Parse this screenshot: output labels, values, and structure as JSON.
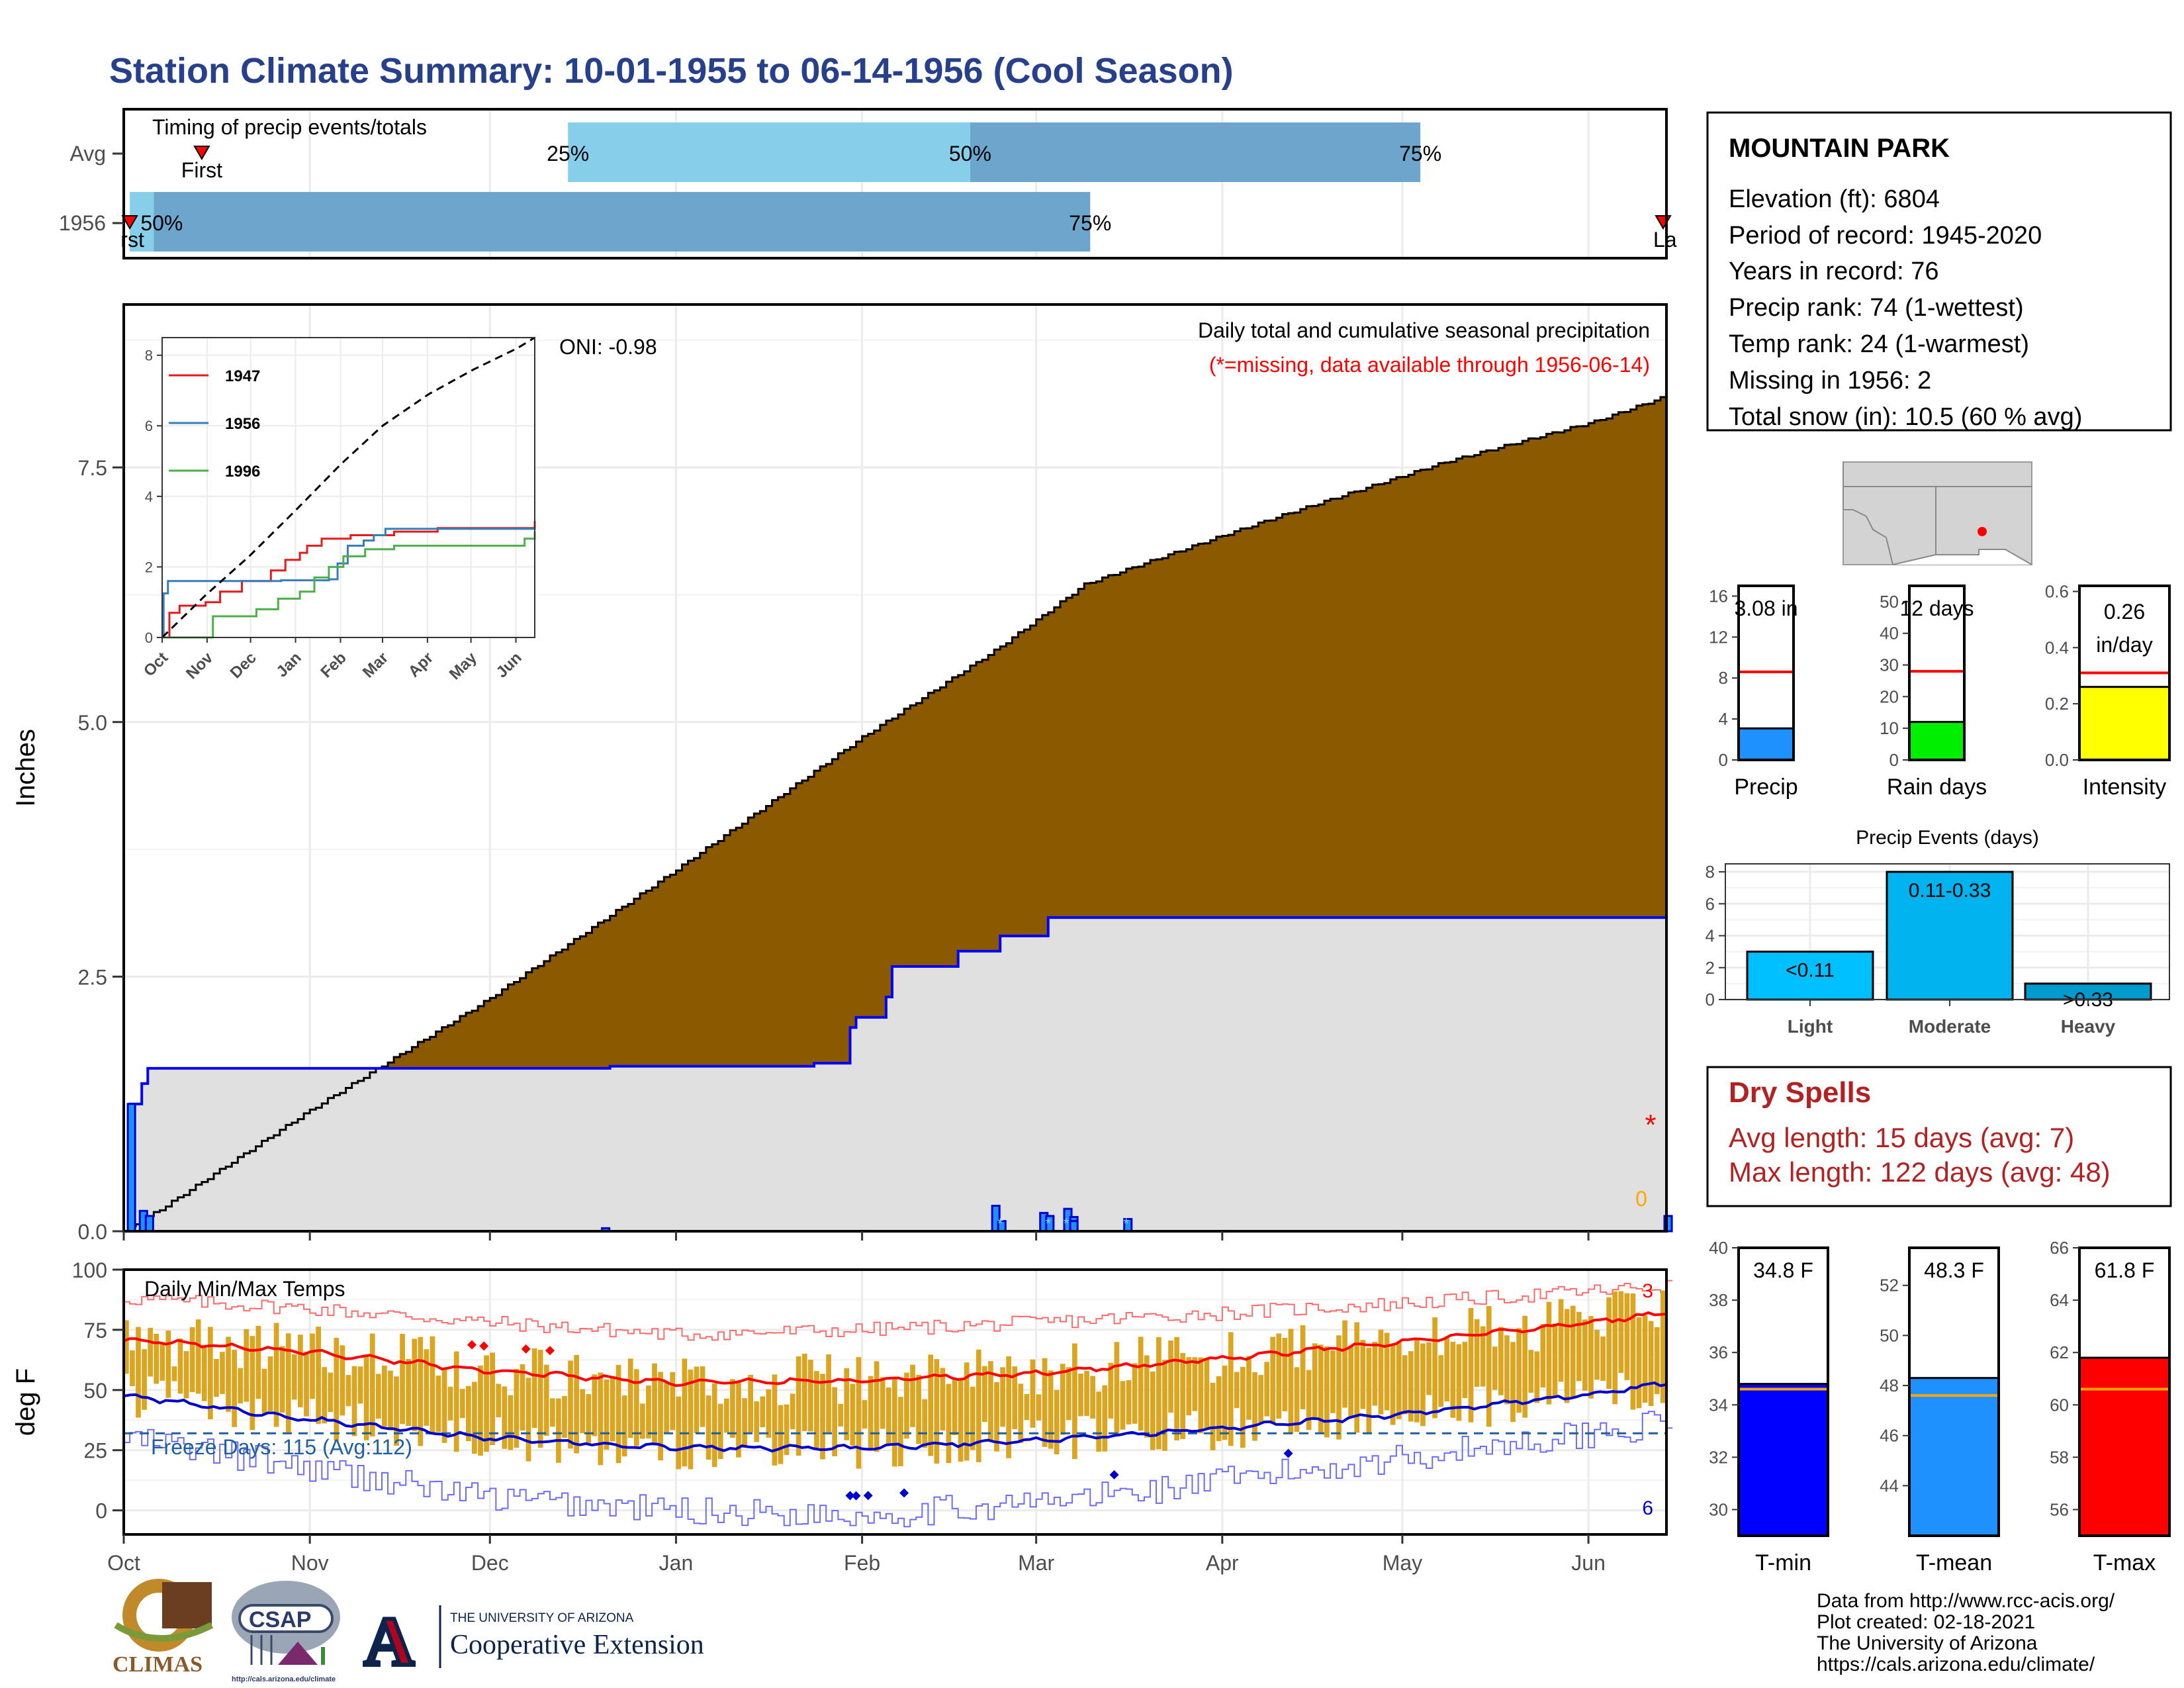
{
  "title": "Station Climate Summary: 10-01-1955 to 06-14-1956 (Cool Season)",
  "months": [
    "Oct",
    "Nov",
    "Dec",
    "Jan",
    "Feb",
    "Mar",
    "Apr",
    "May",
    "Jun"
  ],
  "timing": {
    "label": "Timing of precip events/totals",
    "rows": [
      "Avg",
      "1956"
    ],
    "avg": {
      "first_day": 13,
      "p25": 74,
      "p50": 141,
      "p75": 216,
      "last_day": 318
    },
    "y1956": {
      "first_day": 1,
      "p50_day": 5,
      "p75_day": 161,
      "last_day": 334
    },
    "labels": {
      "p25": "25%",
      "p50": "50%",
      "p75": "75%",
      "p50_short": "50%",
      "first": "First",
      "last": "Last",
      "first_clip": "rst",
      "last_clip": "La"
    },
    "colors": {
      "light": "#87CEEB",
      "dark": "#6CA6CD"
    }
  },
  "station": {
    "name": "MOUNTAIN PARK",
    "lines": [
      "Elevation (ft): 6804",
      "Period of record: 1945-2020",
      "Years in record: 76",
      "Precip rank: 74 (1-wettest)",
      "Temp rank: 24 (1-warmest)",
      "Missing in 1956: 2",
      "Total snow (in): 10.5 (60 % avg)"
    ]
  },
  "chart_data": [
    {
      "type": "area",
      "title": "Daily total and cumulative seasonal precipitation",
      "subtitle": "(*=missing, data available through 1956-06-14)",
      "ylabel": "Inches",
      "ylim": [
        0,
        9.1
      ],
      "yticks": [
        0,
        2.5,
        5,
        7.5
      ],
      "ytick_labels": [
        "0.0",
        "2.5",
        "5.0",
        "7.5"
      ],
      "x_days": 257,
      "oni_label": "ONI: -0.98",
      "annotation_zero": "0",
      "avg_cumulative": {
        "day": [
          0,
          7,
          30,
          60,
          92,
          123,
          145,
          152,
          160,
          184,
          194,
          220,
          245,
          257
        ],
        "value": [
          0,
          0.25,
          1.15,
          2.25,
          3.55,
          4.85,
          5.7,
          6.0,
          6.35,
          6.85,
          7.05,
          7.55,
          7.95,
          8.2
        ]
      },
      "y1956_cumulative": {
        "step_day": [
          0,
          1,
          3,
          4,
          80,
          81,
          82,
          114,
          115,
          120,
          121,
          122,
          127,
          128,
          138,
          139,
          145,
          146,
          153,
          154,
          257
        ],
        "value": [
          0,
          1.25,
          1.45,
          1.6,
          1.6,
          1.62,
          1.62,
          1.62,
          1.65,
          1.65,
          2.0,
          2.1,
          2.3,
          2.6,
          2.6,
          2.75,
          2.75,
          2.9,
          2.9,
          3.08,
          3.08
        ]
      },
      "daily_bars": {
        "day": [
          1,
          3,
          4,
          80,
          145,
          146,
          153,
          154,
          157,
          158,
          158,
          167,
          257
        ],
        "value": [
          1.25,
          0.2,
          0.15,
          0.03,
          0.25,
          0.1,
          0.18,
          0.15,
          0.22,
          0.14,
          0.1,
          0.12,
          0.15
        ]
      },
      "missing_marks_day": [
        146,
        154,
        157,
        167
      ],
      "colors": {
        "above_avg": "#008B00",
        "below_avg": "#8B5A00",
        "fill_1956": "#E0E0E0",
        "line_1956": "#0000FF",
        "missing": "#FF0000"
      }
    },
    {
      "type": "line",
      "title": "",
      "x_ticks": [
        "Oct",
        "Nov",
        "Dec",
        "Jan",
        "Feb",
        "Mar",
        "Apr",
        "May",
        "Jun"
      ],
      "ylim": [
        0,
        8.5
      ],
      "yticks": [
        0,
        2,
        4,
        6,
        8
      ],
      "series": [
        {
          "name": "1947",
          "color": "#E41A1C",
          "x": [
            0,
            5,
            12,
            30,
            40,
            55,
            75,
            85,
            95,
            100,
            110,
            130,
            160,
            190,
            220,
            257
          ],
          "y": [
            0,
            0.7,
            0.9,
            1.0,
            1.3,
            1.6,
            1.9,
            2.2,
            2.4,
            2.6,
            2.8,
            2.9,
            3.0,
            3.1,
            3.1,
            3.3
          ]
        },
        {
          "name": "1956",
          "color": "#377EB8",
          "x": [
            0,
            1,
            4,
            80,
            82,
            115,
            121,
            128,
            139,
            146,
            154,
            257
          ],
          "y": [
            0,
            1.25,
            1.6,
            1.6,
            1.62,
            1.65,
            2.1,
            2.6,
            2.75,
            2.9,
            3.08,
            3.08
          ]
        },
        {
          "name": "1996",
          "color": "#4DAF4A",
          "x": [
            0,
            30,
            35,
            60,
            65,
            80,
            95,
            105,
            115,
            125,
            140,
            160,
            190,
            220,
            250,
            257
          ],
          "y": [
            0,
            0,
            0.6,
            0.6,
            0.8,
            1.1,
            1.3,
            1.7,
            2.0,
            2.3,
            2.5,
            2.6,
            2.6,
            2.6,
            2.8,
            3.0
          ]
        }
      ],
      "avg": {
        "name": "avg",
        "x": [
          0,
          30,
          60,
          92,
          123,
          152,
          184,
          215,
          245,
          257
        ],
        "y": [
          0,
          1.2,
          2.3,
          3.6,
          4.9,
          6.0,
          6.9,
          7.6,
          8.2,
          8.5
        ]
      }
    },
    {
      "type": "line",
      "title": "Daily Min/Max Temps",
      "ylabel": "deg F",
      "ylim": [
        -10,
        100
      ],
      "yticks": [
        0,
        25,
        50,
        75,
        100
      ],
      "freeze_line": 32,
      "freeze_label": "Freeze Days: 115 (Avg:112)",
      "count_high_label": "3",
      "count_low_label": "6",
      "avg_max_line": {
        "x": [
          0,
          30,
          61,
          92,
          123,
          152,
          183,
          213,
          244,
          257
        ],
        "y": [
          71,
          66,
          58,
          53,
          54,
          57,
          63,
          70,
          78,
          82
        ]
      },
      "avg_min_line": {
        "x": [
          0,
          30,
          61,
          92,
          123,
          152,
          183,
          213,
          244,
          257
        ],
        "y": [
          48,
          38,
          30,
          26,
          26,
          29,
          34,
          40,
          48,
          53
        ]
      },
      "record_high": {
        "x": [
          0,
          30,
          61,
          92,
          123,
          152,
          183,
          213,
          244,
          257
        ],
        "y": [
          88,
          84,
          78,
          73,
          75,
          78,
          82,
          86,
          91,
          93
        ]
      },
      "record_low": {
        "x": [
          0,
          30,
          61,
          92,
          123,
          152,
          183,
          213,
          244,
          257
        ],
        "y": [
          30,
          18,
          5,
          0,
          -2,
          3,
          12,
          22,
          32,
          36
        ]
      },
      "record_high_days": [
        58,
        60,
        67,
        71
      ],
      "record_low_days": [
        121,
        122,
        124,
        130,
        165,
        194
      ],
      "colors": {
        "bars": "#DAA520",
        "avg_max": "#FF0000",
        "avg_min": "#0000CD",
        "rec_high": "#FF6A6A",
        "rec_low": "#6A6AFF",
        "freeze": "#1F5F9F"
      }
    },
    {
      "type": "bar",
      "categories": [
        "Precip"
      ],
      "values": [
        3.08
      ],
      "average": 8.6,
      "label": "3.08 in",
      "ylim": [
        0,
        17
      ],
      "yticks": [
        0,
        4,
        8,
        12,
        16
      ],
      "color": "#1E90FF"
    },
    {
      "type": "bar",
      "categories": [
        "Rain days"
      ],
      "values": [
        12
      ],
      "average": 28,
      "label": "12 days",
      "ylim": [
        0,
        55
      ],
      "yticks": [
        0,
        10,
        20,
        30,
        40,
        50
      ],
      "color": "#00EE00"
    },
    {
      "type": "bar",
      "categories": [
        "Intensity"
      ],
      "values": [
        0.26
      ],
      "average": 0.31,
      "label": [
        "0.26",
        "in/day"
      ],
      "ylim": [
        0,
        0.62
      ],
      "yticks": [
        0.0,
        0.2,
        0.4,
        0.6
      ],
      "ytick_labels": [
        "0.0",
        "0.2",
        "0.4",
        "0.6"
      ],
      "color": "#FFFF00"
    },
    {
      "type": "bar",
      "title": "Precip Events (days)",
      "categories": [
        "Light",
        "Moderate",
        "Heavy"
      ],
      "values": [
        3,
        8,
        1
      ],
      "bar_labels": [
        "<0.11",
        "0.11-0.33",
        ">0.33"
      ],
      "ylim": [
        0,
        8.5
      ],
      "yticks": [
        0,
        2,
        4,
        6,
        8
      ],
      "colors": [
        "#00BFFF",
        "#00B2EE",
        "#009ACD"
      ]
    },
    {
      "type": "bar",
      "categories": [
        "T-min"
      ],
      "values": [
        34.8
      ],
      "average": 34.6,
      "label": "34.8 F",
      "ylim": [
        29,
        40
      ],
      "yticks": [
        30,
        32,
        34,
        36,
        38,
        40
      ],
      "color": "#0000FF"
    },
    {
      "type": "bar",
      "categories": [
        "T-mean"
      ],
      "values": [
        48.3
      ],
      "average": 47.6,
      "label": "48.3 F",
      "ylim": [
        42,
        53.5
      ],
      "yticks": [
        44,
        46,
        48,
        50,
        52
      ],
      "color": "#1E90FF"
    },
    {
      "type": "bar",
      "categories": [
        "T-max"
      ],
      "values": [
        61.8
      ],
      "average": 60.6,
      "label": "61.8 F",
      "ylim": [
        55,
        66
      ],
      "yticks": [
        56,
        58,
        60,
        62,
        64,
        66
      ],
      "color": "#FF0000"
    }
  ],
  "dry_spells": {
    "title": "Dry Spells",
    "avg_line": "Avg length: 15 days (avg: 7)",
    "max_line": "Max length: 122 days (avg: 48)"
  },
  "footer": {
    "lines": [
      "Data from http://www.rcc-acis.org/",
      "Plot created: 02-18-2021",
      "The University of Arizona",
      "https://cals.arizona.edu/climate/"
    ],
    "climas": "CLIMAS",
    "csap": "CSAP",
    "csap_url": "http://cals.arizona.edu/climate",
    "ua_small": "THE UNIVERSITY OF ARIZONA",
    "ua_big": "Cooperative Extension",
    "ua_letter": "A"
  }
}
